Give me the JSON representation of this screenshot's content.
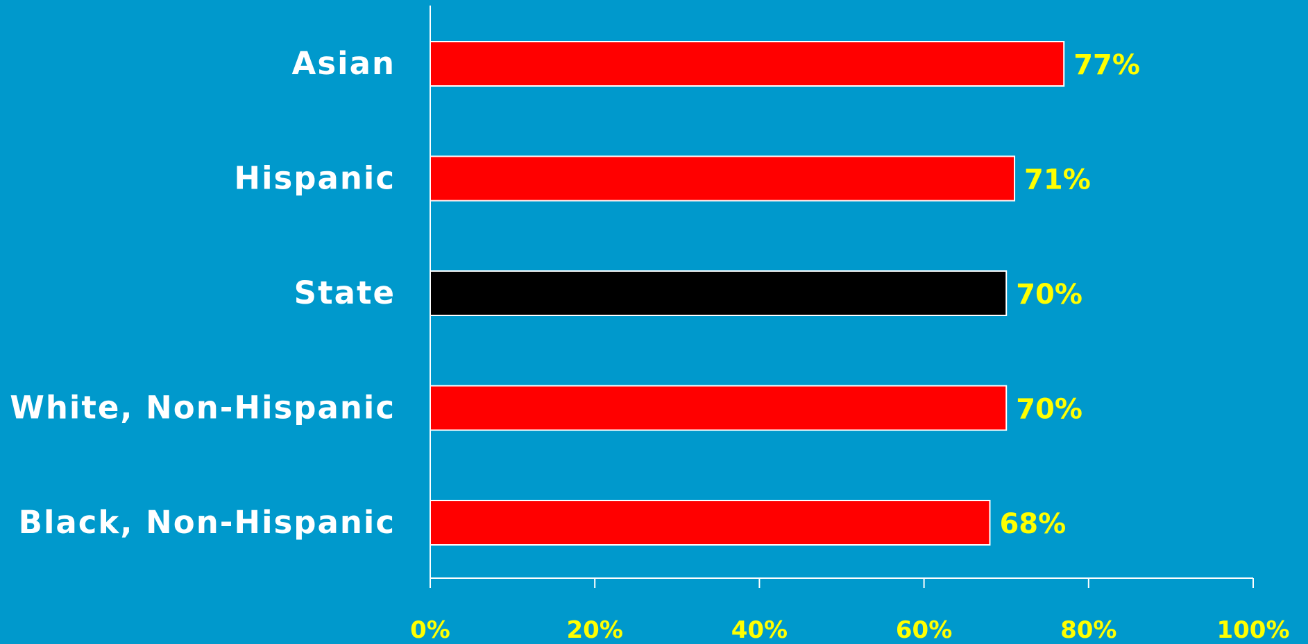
{
  "colors": {
    "background": "#0099cc",
    "bar": "#ff0000",
    "highlight_bar": "#000000",
    "bar_outline": "#ffffff",
    "category_label": "#ffffff",
    "value_label": "#ffff00",
    "tick_label": "#ffff00",
    "axis": "#ffffff"
  },
  "chart_data": {
    "type": "bar",
    "orientation": "horizontal",
    "categories": [
      "Asian",
      "Hispanic",
      "State",
      "White, Non-Hispanic",
      "Black, Non-Hispanic"
    ],
    "values": [
      77,
      71,
      70,
      70,
      68
    ],
    "value_labels": [
      "77%",
      "71%",
      "70%",
      "70%",
      "68%"
    ],
    "highlight_category": "State",
    "xlim": [
      0,
      100
    ],
    "x_ticks": [
      0,
      20,
      40,
      60,
      80,
      100
    ],
    "x_tick_labels": [
      "0%",
      "20%",
      "40%",
      "60%",
      "80%",
      "100%"
    ],
    "grid": false,
    "legend": "none",
    "title": "",
    "xlabel": "",
    "ylabel": ""
  }
}
